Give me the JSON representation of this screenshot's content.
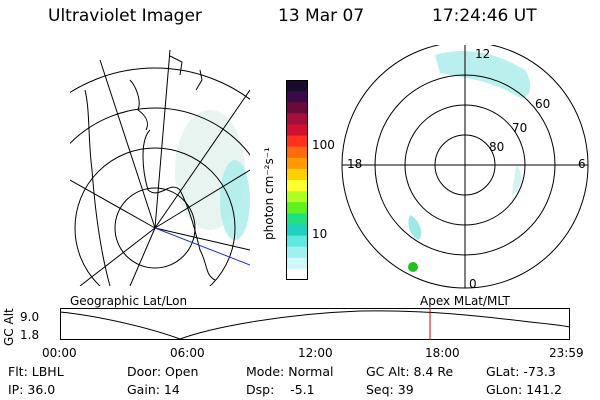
{
  "header": {
    "instrument": "Ultraviolet Imager",
    "date": "13 Mar 07",
    "time": "17:24:46 UT"
  },
  "colorbar": {
    "label": "photon cm⁻²s⁻¹",
    "ticks": [
      "100",
      "10"
    ],
    "colors": [
      "#1a0a2e",
      "#3a0a4a",
      "#6a0a3a",
      "#a0103a",
      "#d01030",
      "#ff3020",
      "#ff6a10",
      "#ff9a00",
      "#ffd000",
      "#ffff30",
      "#b0ff20",
      "#60f020",
      "#20e080",
      "#20d0c0",
      "#60e8e0",
      "#a0f0f0",
      "#d0f8f8",
      "#ffffff"
    ]
  },
  "geographic": {
    "label": "Geographic Lat/Lon"
  },
  "magnetic": {
    "label": "Apex MLat/MLT",
    "lat_labels": [
      "60",
      "70",
      "80"
    ],
    "mlt_labels": {
      "top": "12",
      "left": "18",
      "right": "6",
      "bottom": "0"
    }
  },
  "timeline": {
    "axis_label": "GC Alt",
    "y_ticks": [
      "9.0",
      "1.8"
    ],
    "x_ticks": [
      "00:00",
      "06:00",
      "12:00",
      "18:00",
      "23:59"
    ],
    "current_time_color": "#e00000"
  },
  "footer": {
    "rows": [
      [
        "Flt: LBHL",
        "Door: Open",
        "Mode: Normal",
        "GC Alt: 8.4 Re",
        "GLat: -73.3"
      ],
      [
        "IP: 36.0",
        "Gain: 14",
        "Dsp:    -5.1",
        "Seq: 39",
        "GLon: 141.2"
      ]
    ]
  }
}
